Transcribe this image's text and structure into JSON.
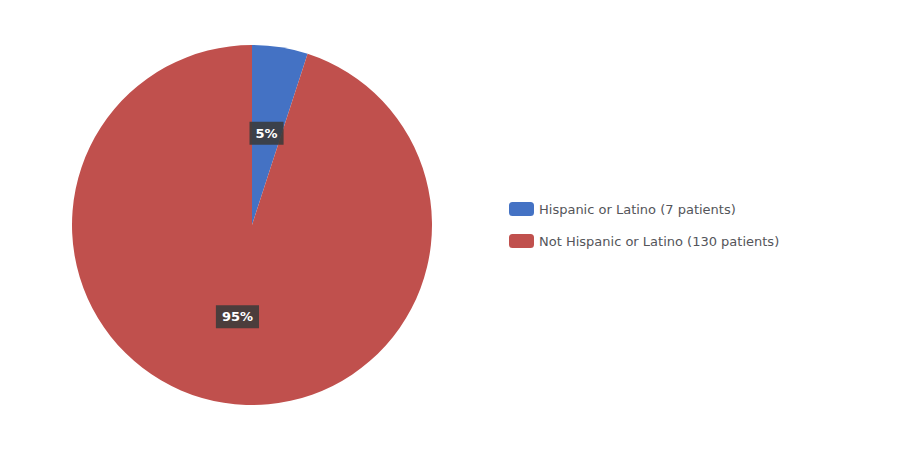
{
  "chart_data": {
    "type": "pie",
    "categories": [
      "Hispanic or Latino (7 patients)",
      "Not Hispanic or Latino (130 patients)"
    ],
    "values": [
      5,
      95
    ],
    "value_labels": [
      "5%",
      "95%"
    ],
    "colors": [
      "#4472C4",
      "#C0504D"
    ],
    "data_labels": true,
    "legend": "right"
  }
}
